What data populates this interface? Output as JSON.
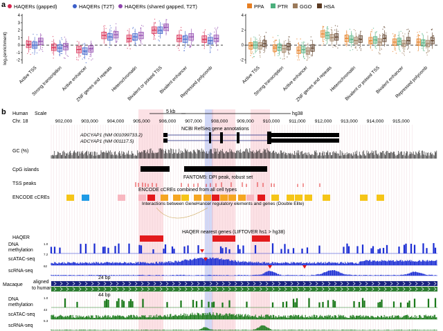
{
  "panel_a": {
    "label": "a",
    "ylabel": "log₂(enrichment)",
    "colors": {
      "HAQERs (gapped)": "#d62750",
      "HAQERs (T2T)": "#3b5fc9",
      "HAQERs (shared gapped, T2T)": "#8e44ad",
      "PPA": "#e67e22",
      "PTR": "#4caf7d",
      "GGO": "#9b7a5a",
      "HSA": "#5a3a22"
    }
  },
  "chart_data": [
    {
      "type": "box",
      "title": "",
      "series": [
        {
          "name": "HAQERs (gapped)"
        },
        {
          "name": "HAQERs (T2T)"
        },
        {
          "name": "HAQERs (shared gapped, T2T)"
        }
      ],
      "categories": [
        "Active TSS",
        "Strong transcription",
        "Active enhancer",
        "ZNF genes and repeats",
        "Heterochromatin",
        "Bivalent or poised TSS",
        "Bivalent enhancer",
        "Repressed polycomb"
      ],
      "medians": [
        [
          0.1,
          -0.3,
          -0.6,
          1.3,
          0.9,
          2.0,
          0.9,
          0.8
        ],
        [
          0.0,
          -0.4,
          -0.8,
          1.1,
          1.1,
          2.0,
          0.8,
          0.6
        ],
        [
          0.5,
          -0.2,
          -0.5,
          1.4,
          1.3,
          2.4,
          1.1,
          0.9
        ]
      ],
      "yticks": [
        -2,
        -1,
        0,
        1,
        2,
        3,
        4
      ],
      "ylim": [
        -2.5,
        4.2
      ],
      "legend": "top"
    },
    {
      "type": "box",
      "title": "",
      "series": [
        {
          "name": "PPA"
        },
        {
          "name": "PTR"
        },
        {
          "name": "GGO"
        },
        {
          "name": "HSA"
        }
      ],
      "categories": [
        "Active TSS",
        "Strong transcription",
        "Active enhancer",
        "ZNF genes and repeats",
        "Heterochromatin",
        "Bivalent or poised TSS",
        "Bivalent enhancer",
        "Repressed polycomb"
      ],
      "medians": [
        [
          -0.1,
          -0.4,
          -0.7,
          1.5,
          0.9,
          0.6,
          0.4,
          0.4
        ],
        [
          0.0,
          -0.3,
          -0.6,
          1.3,
          0.8,
          0.7,
          0.5,
          0.3
        ],
        [
          -0.1,
          -0.5,
          -0.8,
          1.0,
          0.6,
          0.4,
          0.2,
          0.2
        ],
        [
          0.2,
          -0.2,
          -0.4,
          1.1,
          0.8,
          0.9,
          0.6,
          0.6
        ]
      ],
      "yticks": [
        -2,
        0,
        2,
        4
      ],
      "ylim": [
        -2.5,
        4.2
      ],
      "legend": "top"
    }
  ],
  "panel_b": {
    "label": "b",
    "species_human": "Human",
    "scale_label": "Scale",
    "chr": "Chr. 18",
    "scale_bar": "5 kb",
    "assembly": "hg38",
    "coords": [
      "902,000",
      "903,000",
      "904,000",
      "905,000",
      "906,000",
      "907,000",
      "908,000",
      "909,000",
      "910,000",
      "911,000",
      "912,000",
      "913,000",
      "914,000",
      "915,000"
    ],
    "refseq_title": "NCBI RefSeq gene annotations",
    "gene1": "ADCYAP1 (NM 001099733.2)",
    "gene2": "ADCYAP1 (NM 001117.5)",
    "gc": "GC (%)",
    "cpg": "CpG islands",
    "fantom": "FANTOM5: DPI peak, robust set",
    "tss": "TSS peaks",
    "encode_title": "ENCODE cCREs combined from all cell types",
    "encode": "ENCODE cCREs",
    "genehancer": "Interactions between GeneHancer regulatory elements and genes (Double Elite)",
    "haqer_nearest": "HAQER nearest genes (LIFTOVER hs1 > hg38)",
    "haqer": "HAQER",
    "dna_meth": "DNA",
    "dna_meth2": "methylation",
    "scatac": "scATAC-seq",
    "scrna": "scRNA-seq",
    "macaque": "Macaque",
    "aligned": "aligned",
    "to_human": "to human",
    "bp24": "24 bp",
    "bp44": "44 bp",
    "meth_scale": "1.0",
    "meth_scale_low": "0",
    "atac_scale": "7.2",
    "rna_scale": "62",
    "mac_meth_scale": "1.0",
    "mac_atac_scale": "43",
    "mac_rna_scale": "5.3"
  }
}
